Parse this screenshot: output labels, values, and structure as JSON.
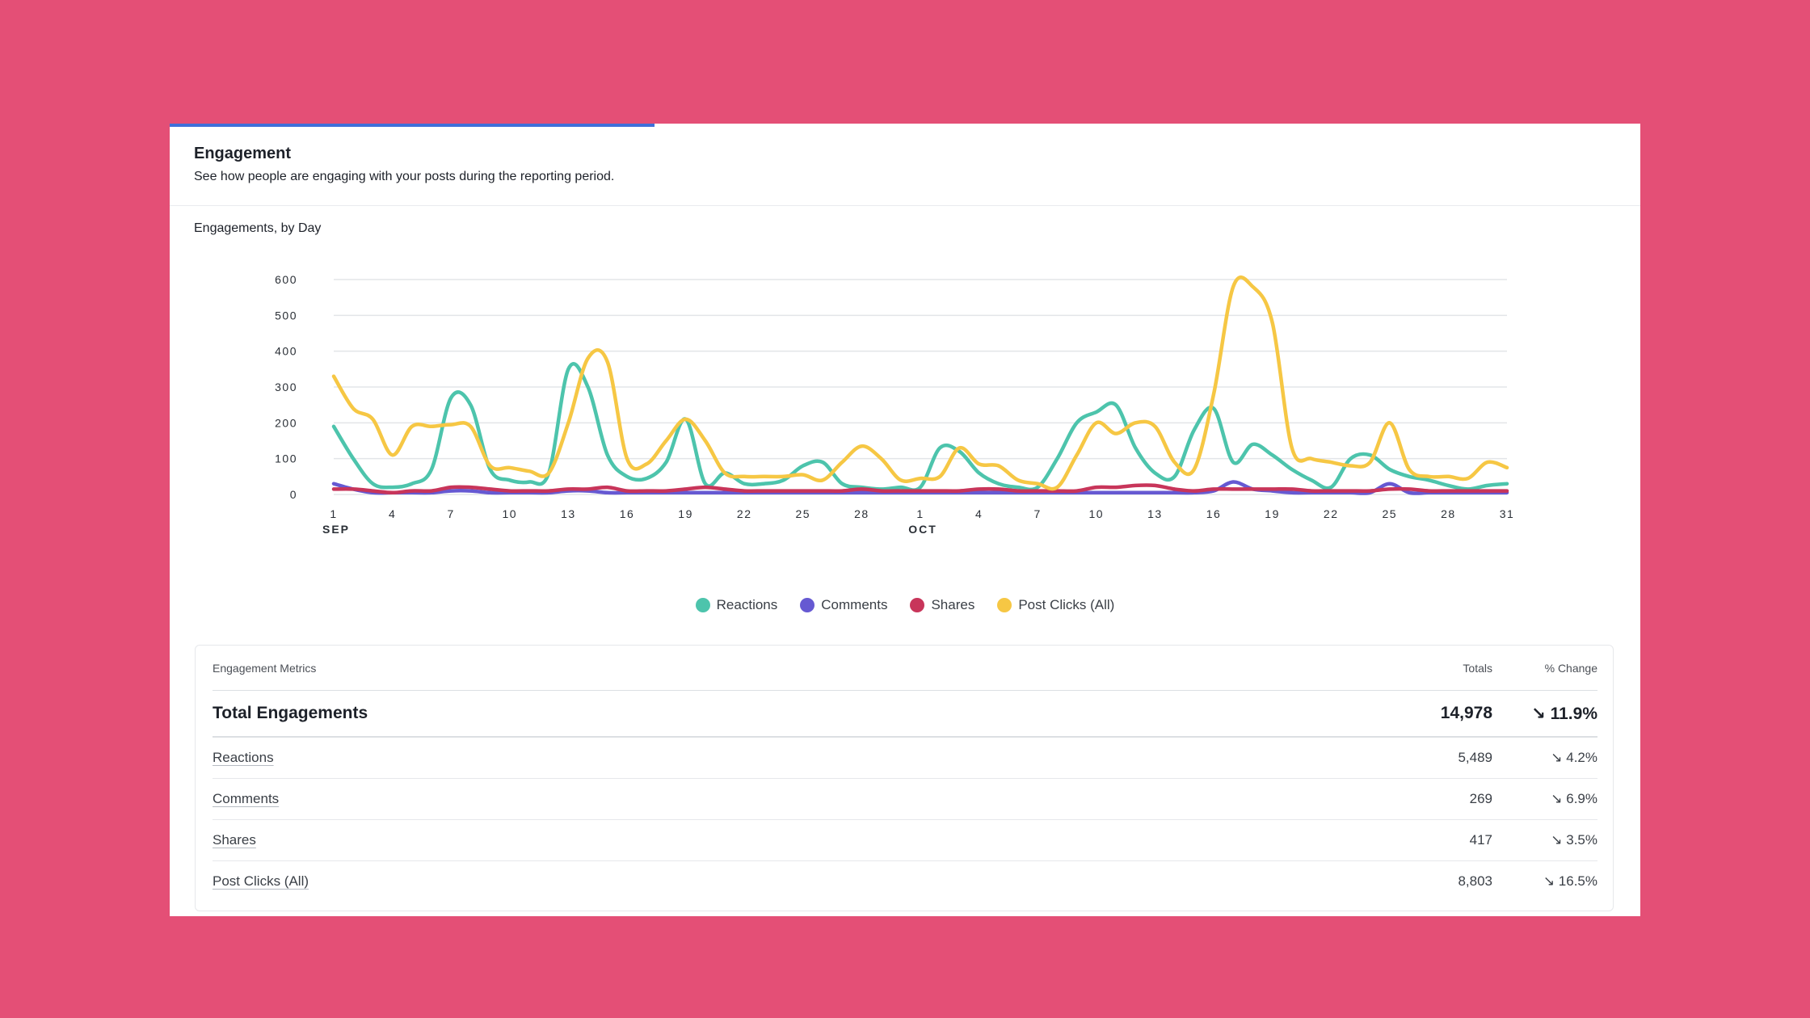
{
  "card": {
    "title": "Engagement",
    "subtitle": "See how people are engaging with your posts during the reporting period."
  },
  "colors": {
    "background": "#E44F76",
    "accent": "#3f6fd9",
    "reactions": "#4DC4AC",
    "comments": "#6659D2",
    "shares": "#C8355A",
    "post_clicks": "#F6C744"
  },
  "chart_data": {
    "type": "line",
    "title": "Engagements, by Day",
    "xlabel": "",
    "ylabel": "",
    "ylim": [
      0,
      600
    ],
    "yticks": [
      "0",
      "100",
      "200",
      "300",
      "400",
      "500",
      "600"
    ],
    "xticks": [
      {
        "day": 1,
        "label": "1",
        "month": "SEP"
      },
      {
        "day": 4,
        "label": "4"
      },
      {
        "day": 7,
        "label": "7"
      },
      {
        "day": 10,
        "label": "10"
      },
      {
        "day": 13,
        "label": "13"
      },
      {
        "day": 16,
        "label": "16"
      },
      {
        "day": 19,
        "label": "19"
      },
      {
        "day": 22,
        "label": "22"
      },
      {
        "day": 25,
        "label": "25"
      },
      {
        "day": 28,
        "label": "28"
      },
      {
        "day": 31,
        "label": "1",
        "month": "OCT"
      },
      {
        "day": 34,
        "label": "4"
      },
      {
        "day": 37,
        "label": "7"
      },
      {
        "day": 40,
        "label": "10"
      },
      {
        "day": 43,
        "label": "13"
      },
      {
        "day": 46,
        "label": "16"
      },
      {
        "day": 49,
        "label": "19"
      },
      {
        "day": 52,
        "label": "22"
      },
      {
        "day": 55,
        "label": "25"
      },
      {
        "day": 58,
        "label": "28"
      },
      {
        "day": 61,
        "label": "31"
      }
    ],
    "x": [
      1,
      2,
      3,
      4,
      5,
      6,
      7,
      8,
      9,
      10,
      11,
      12,
      13,
      14,
      15,
      16,
      17,
      18,
      19,
      20,
      21,
      22,
      23,
      24,
      25,
      26,
      27,
      28,
      29,
      30,
      31,
      32,
      33,
      34,
      35,
      36,
      37,
      38,
      39,
      40,
      41,
      42,
      43,
      44,
      45,
      46,
      47,
      48,
      49,
      50,
      51,
      52,
      53,
      54,
      55,
      56,
      57,
      58,
      59,
      60,
      61
    ],
    "series": [
      {
        "name": "Reactions",
        "color": "#4DC4AC",
        "values": [
          190,
          100,
          30,
          20,
          30,
          70,
          270,
          250,
          70,
          40,
          35,
          60,
          350,
          300,
          110,
          50,
          45,
          90,
          210,
          30,
          60,
          30,
          30,
          40,
          80,
          90,
          30,
          20,
          15,
          20,
          20,
          130,
          120,
          60,
          30,
          20,
          20,
          100,
          200,
          230,
          250,
          130,
          60,
          50,
          180,
          240,
          90,
          140,
          110,
          70,
          40,
          20,
          100,
          110,
          70,
          50,
          40,
          25,
          15,
          25,
          30
        ]
      },
      {
        "name": "Comments",
        "color": "#6659D2",
        "values": [
          30,
          15,
          5,
          5,
          5,
          5,
          10,
          10,
          5,
          5,
          5,
          5,
          10,
          10,
          5,
          5,
          5,
          5,
          5,
          5,
          5,
          5,
          5,
          5,
          5,
          5,
          5,
          5,
          5,
          5,
          5,
          5,
          5,
          5,
          5,
          5,
          5,
          5,
          5,
          5,
          5,
          5,
          5,
          5,
          5,
          10,
          35,
          15,
          10,
          5,
          5,
          5,
          5,
          5,
          30,
          5,
          5,
          5,
          5,
          5,
          5
        ]
      },
      {
        "name": "Shares",
        "color": "#C8355A",
        "values": [
          15,
          15,
          10,
          5,
          10,
          10,
          20,
          20,
          15,
          10,
          10,
          10,
          15,
          15,
          20,
          10,
          10,
          10,
          15,
          20,
          15,
          10,
          10,
          10,
          10,
          10,
          10,
          15,
          10,
          10,
          10,
          10,
          10,
          15,
          15,
          10,
          10,
          10,
          10,
          20,
          20,
          25,
          25,
          15,
          10,
          15,
          15,
          15,
          15,
          15,
          10,
          10,
          10,
          10,
          15,
          15,
          10,
          10,
          10,
          10,
          10
        ]
      },
      {
        "name": "Post Clicks (All)",
        "color": "#F6C744",
        "values": [
          330,
          240,
          210,
          110,
          190,
          190,
          195,
          190,
          80,
          75,
          65,
          60,
          200,
          380,
          370,
          100,
          85,
          150,
          210,
          150,
          60,
          50,
          50,
          50,
          55,
          40,
          90,
          135,
          100,
          40,
          45,
          50,
          130,
          85,
          80,
          40,
          30,
          20,
          110,
          200,
          170,
          200,
          190,
          90,
          70,
          280,
          580,
          580,
          480,
          130,
          100,
          90,
          80,
          90,
          200,
          70,
          50,
          50,
          45,
          90,
          75
        ]
      }
    ]
  },
  "metrics": {
    "headers": {
      "label": "Engagement Metrics",
      "totals": "Totals",
      "change": "% Change"
    },
    "total": {
      "label": "Total Engagements",
      "value": "14,978",
      "change": "↘ 11.9%"
    },
    "rows": [
      {
        "label": "Reactions",
        "value": "5,489",
        "change": "↘ 4.2%"
      },
      {
        "label": "Comments",
        "value": "269",
        "change": "↘ 6.9%"
      },
      {
        "label": "Shares",
        "value": "417",
        "change": "↘ 3.5%"
      },
      {
        "label": "Post Clicks (All)",
        "value": "8,803",
        "change": "↘ 16.5%"
      }
    ]
  }
}
